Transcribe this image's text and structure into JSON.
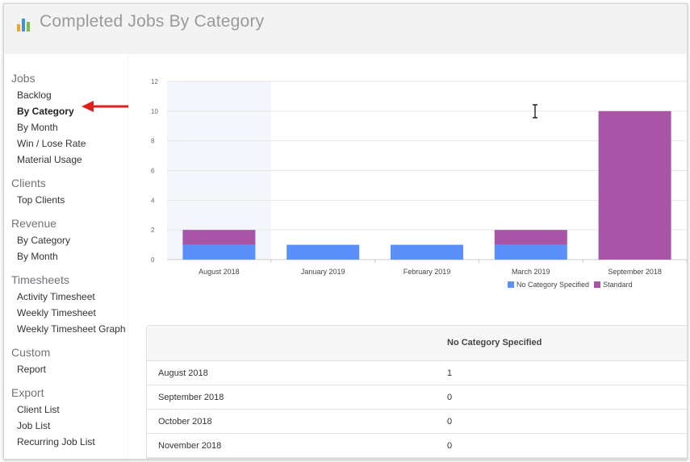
{
  "header": {
    "title": "Completed Jobs By Category",
    "icon": "bar-chart-icon"
  },
  "sidebar": {
    "sections": [
      {
        "title": "Jobs",
        "items": [
          "Backlog",
          "By Category",
          "By Month",
          "Win / Lose Rate",
          "Material Usage"
        ]
      },
      {
        "title": "Clients",
        "items": [
          "Top Clients"
        ]
      },
      {
        "title": "Revenue",
        "items": [
          "By Category",
          "By Month"
        ]
      },
      {
        "title": "Timesheets",
        "items": [
          "Activity Timesheet",
          "Weekly Timesheet",
          "Weekly Timesheet Graph"
        ]
      },
      {
        "title": "Custom",
        "items": [
          "Report"
        ]
      },
      {
        "title": "Export",
        "items": [
          "Client List",
          "Job List",
          "Recurring Job List"
        ]
      }
    ],
    "active": "Jobs / By Category"
  },
  "chart_data": {
    "type": "bar",
    "stacked": true,
    "categories": [
      "August 2018",
      "January 2019",
      "February 2019",
      "March 2019",
      "September 2018"
    ],
    "series": [
      {
        "name": "No Category Specified",
        "color": "#5b8ff9",
        "values": [
          1,
          1,
          1,
          1,
          0
        ]
      },
      {
        "name": "Standard",
        "color": "#a855a8",
        "values": [
          1,
          0,
          0,
          1,
          10
        ]
      }
    ],
    "ylim": [
      0,
      12
    ],
    "yticks": [
      0,
      2,
      4,
      6,
      8,
      10,
      12
    ],
    "grid": true,
    "legend": "bottom-right",
    "highlighted_category": "August 2018"
  },
  "table": {
    "header": [
      "",
      "No Category Specified"
    ],
    "rows": [
      [
        "August 2018",
        "1"
      ],
      [
        "September 2018",
        "0"
      ],
      [
        "October 2018",
        "0"
      ],
      [
        "November 2018",
        "0"
      ]
    ]
  }
}
